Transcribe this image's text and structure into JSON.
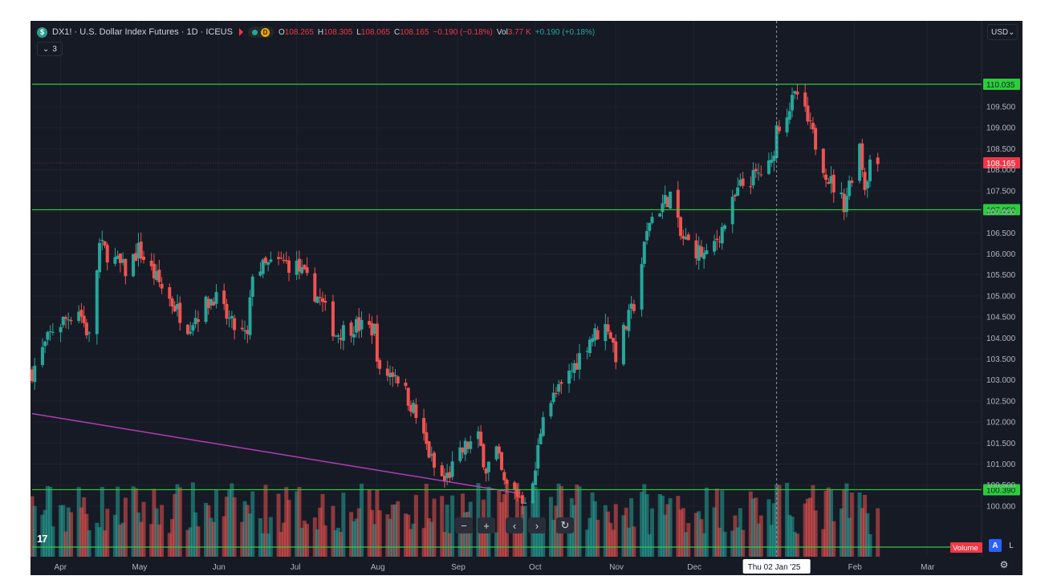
{
  "header": {
    "symbol_badge": "$",
    "title": "DX1! · U.S. Dollar Index Futures · 1D · ICEUS",
    "live_dot": "●",
    "delay_badge": "D",
    "ohlc": {
      "open_label": "O",
      "open": "108.265",
      "high_label": "H",
      "high": "108.305",
      "low_label": "L",
      "low": "108.065",
      "close_label": "C",
      "close": "108.165",
      "change": "−0.190 (−0.18%)",
      "vol_label": "Vol",
      "vol": "3.77 K",
      "vol_change": "+0.190 (+0.18%)"
    },
    "collapse_count": "3",
    "currency": "USD"
  },
  "bottom": {
    "crosshair_date": "Thu 02 Jan '25",
    "volume_badge": "Volume",
    "auto_label": "A",
    "log_label": "L",
    "logo": "17",
    "nav": {
      "zoom_out": "−",
      "zoom_in": "+",
      "left": "‹",
      "right": "›",
      "reset": "↻"
    }
  },
  "colors": {
    "background": "#161a25",
    "up": "#26a69a",
    "down": "#ef5350",
    "level_line": "#2ecc40",
    "trend_line": "#b43cb4",
    "axis_text": "#b2b5be"
  },
  "chart_data": {
    "type": "candlestick",
    "symbol": "DX1!",
    "timeframe": "1D",
    "exchange": "ICEUS",
    "y_axis": {
      "ylim": [
        99.75,
        110.55
      ],
      "ticks": [
        100.0,
        100.5,
        101.0,
        101.5,
        102.0,
        102.5,
        103.0,
        103.5,
        104.0,
        104.5,
        105.0,
        105.5,
        106.0,
        106.5,
        107.0,
        107.5,
        108.0,
        108.5,
        109.0,
        109.5
      ],
      "tick_labels": [
        "100.000",
        "100.500",
        "101.000",
        "101.500",
        "102.000",
        "102.500",
        "103.000",
        "103.500",
        "104.000",
        "104.500",
        "105.000",
        "105.500",
        "106.000",
        "106.500",
        "107.000",
        "107.500",
        "108.000",
        "108.500",
        "109.000",
        "109.500"
      ]
    },
    "x_axis": {
      "start": "2024-03-21",
      "end": "2025-03-22",
      "month_labels": [
        "Apr",
        "May",
        "Jun",
        "Jul",
        "Aug",
        "Sep",
        "Oct",
        "Nov",
        "Dec",
        "Feb",
        "Mar"
      ],
      "month_dates": [
        "2024-04-01",
        "2024-05-01",
        "2024-06-01",
        "2024-07-01",
        "2024-08-01",
        "2024-09-01",
        "2024-10-01",
        "2024-11-01",
        "2024-12-01",
        "2025-02-01",
        "2025-03-01"
      ]
    },
    "horizontal_lines": [
      {
        "price": 110.035,
        "label": "110.035"
      },
      {
        "price": 107.05,
        "label": "107.050"
      },
      {
        "price": 100.39,
        "label": "100.390"
      }
    ],
    "current_price": {
      "price": 108.165,
      "label": "108.165"
    },
    "trend_line": {
      "start": [
        "2024-03-21",
        102.2
      ],
      "end": [
        "2024-09-25",
        100.3
      ]
    },
    "crosshair": {
      "date": "2025-01-02"
    },
    "price_waypoints": [
      [
        "2024-03-21",
        103.2
      ],
      [
        "2024-03-29",
        104.2
      ],
      [
        "2024-04-08",
        104.7
      ],
      [
        "2024-04-12",
        104.0
      ],
      [
        "2024-04-16",
        106.2
      ],
      [
        "2024-04-26",
        105.6
      ],
      [
        "2024-05-01",
        106.1
      ],
      [
        "2024-05-10",
        105.2
      ],
      [
        "2024-05-20",
        104.3
      ],
      [
        "2024-05-30",
        105.0
      ],
      [
        "2024-06-06",
        104.3
      ],
      [
        "2024-06-12",
        104.0
      ],
      [
        "2024-06-14",
        105.6
      ],
      [
        "2024-06-25",
        105.8
      ],
      [
        "2024-07-01",
        105.7
      ],
      [
        "2024-07-10",
        104.9
      ],
      [
        "2024-07-16",
        104.1
      ],
      [
        "2024-07-23",
        104.3
      ],
      [
        "2024-07-31",
        104.2
      ],
      [
        "2024-08-02",
        103.1
      ],
      [
        "2024-08-08",
        103.2
      ],
      [
        "2024-08-15",
        102.3
      ],
      [
        "2024-08-23",
        100.9
      ],
      [
        "2024-08-27",
        100.6
      ],
      [
        "2024-09-04",
        101.4
      ],
      [
        "2024-09-09",
        101.6
      ],
      [
        "2024-09-12",
        100.9
      ],
      [
        "2024-09-16",
        101.3
      ],
      [
        "2024-09-19",
        100.5
      ],
      [
        "2024-09-26",
        100.2
      ],
      [
        "2024-09-30",
        100.4
      ],
      [
        "2024-10-04",
        102.3
      ],
      [
        "2024-10-11",
        102.8
      ],
      [
        "2024-10-22",
        104.0
      ],
      [
        "2024-10-29",
        104.3
      ],
      [
        "2024-11-01",
        103.6
      ],
      [
        "2024-11-08",
        104.8
      ],
      [
        "2024-11-14",
        106.8
      ],
      [
        "2024-11-22",
        107.4
      ],
      [
        "2024-11-26",
        106.4
      ],
      [
        "2024-12-06",
        105.9
      ],
      [
        "2024-12-12",
        106.6
      ],
      [
        "2024-12-19",
        107.6
      ],
      [
        "2024-12-31",
        108.1
      ],
      [
        "2025-01-02",
        109.0
      ],
      [
        "2025-01-10",
        109.8
      ],
      [
        "2025-01-13",
        109.3
      ],
      [
        "2025-01-22",
        107.8
      ],
      [
        "2025-01-28",
        107.2
      ],
      [
        "2025-02-03",
        108.6
      ],
      [
        "2025-02-05",
        107.6
      ],
      [
        "2025-02-07",
        108.2
      ],
      [
        "2025-02-10",
        108.165
      ]
    ]
  }
}
